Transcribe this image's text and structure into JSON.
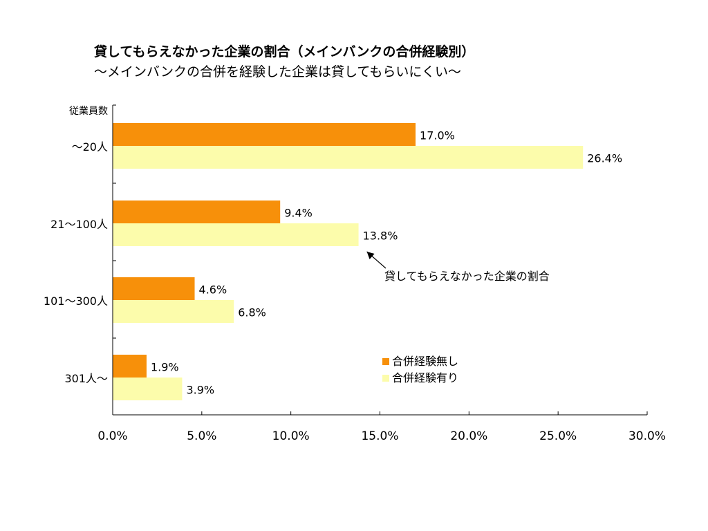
{
  "page": {
    "title": "貸してもらえなかった企業の割合（メインバンクの合併経験別）",
    "subtitle": "〜メインバンクの合併を経験した企業は貸してもらいにくい〜"
  },
  "chart_data": {
    "type": "bar",
    "orientation": "horizontal",
    "ylabel": "従業員数",
    "categories": [
      "〜20人",
      "21〜100人",
      "101〜300人",
      "301人〜"
    ],
    "series": [
      {
        "name": "合併経験無し",
        "color": "#f7900a",
        "values": [
          17.0,
          9.4,
          4.6,
          1.9
        ],
        "labels": [
          "17.0%",
          "9.4%",
          "4.6%",
          "1.9%"
        ]
      },
      {
        "name": "合併経験有り",
        "color": "#fcfcab",
        "values": [
          26.4,
          13.8,
          6.8,
          3.9
        ],
        "labels": [
          "26.4%",
          "13.8%",
          "6.8%",
          "3.9%"
        ]
      }
    ],
    "xlim": [
      0,
      30
    ],
    "xticks": [
      "0.0%",
      "5.0%",
      "10.0%",
      "15.0%",
      "20.0%",
      "25.0%",
      "30.0%"
    ],
    "annotation": {
      "text": "貸してもらえなかった企業の割合",
      "points_to": {
        "category": 1,
        "series": 1
      }
    },
    "legend": {
      "position": "bottom-center"
    },
    "grid": false
  }
}
